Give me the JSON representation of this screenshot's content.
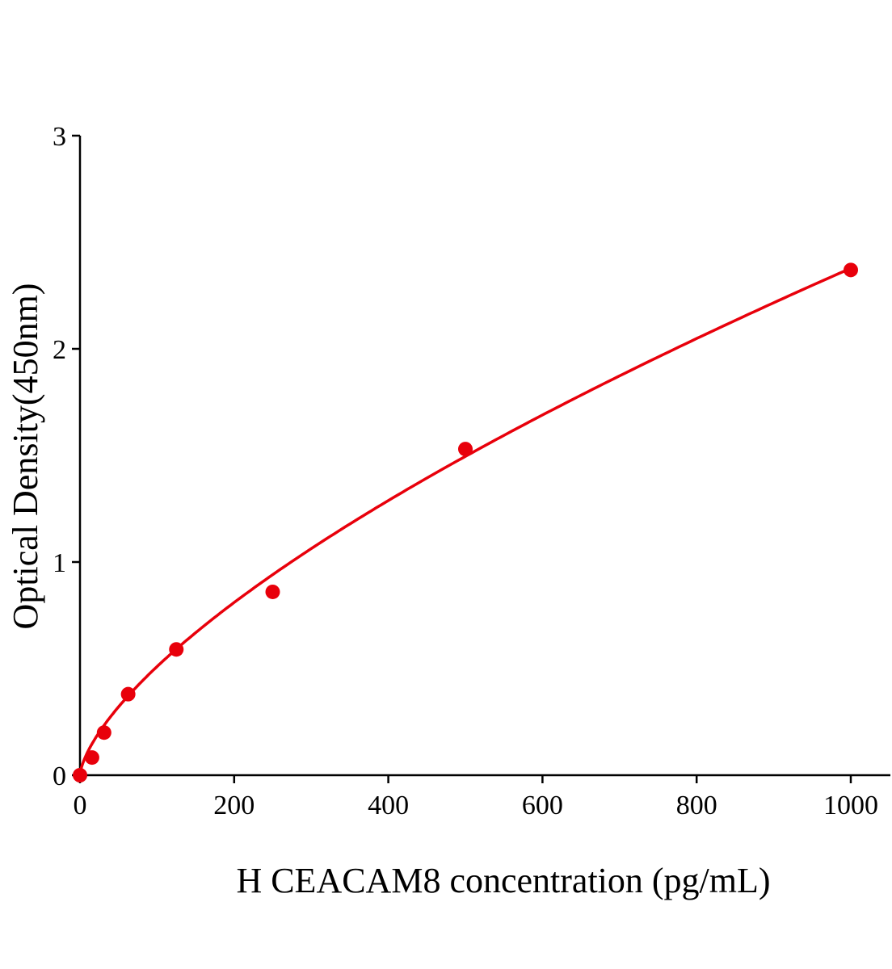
{
  "chart_data": {
    "type": "scatter",
    "title": "",
    "xlabel": "H CEACAM8 concentration (pg/mL)",
    "ylabel": "Optical Density(450nm)",
    "xlim": [
      0,
      1050
    ],
    "ylim": [
      0,
      3
    ],
    "x_ticks": [
      "0",
      "200",
      "400",
      "600",
      "800",
      "1000"
    ],
    "y_ticks": [
      "0",
      "1",
      "2",
      "3"
    ],
    "grid": false,
    "legend": "none",
    "series": [
      {
        "x": [
          0,
          15.6,
          31.25,
          62.5,
          125,
          250,
          500,
          1000
        ],
        "y": [
          0,
          0.083,
          0.2,
          0.38,
          0.59,
          0.86,
          1.53,
          2.37
        ],
        "color": "#e8000b",
        "fit_line": true
      }
    ]
  }
}
